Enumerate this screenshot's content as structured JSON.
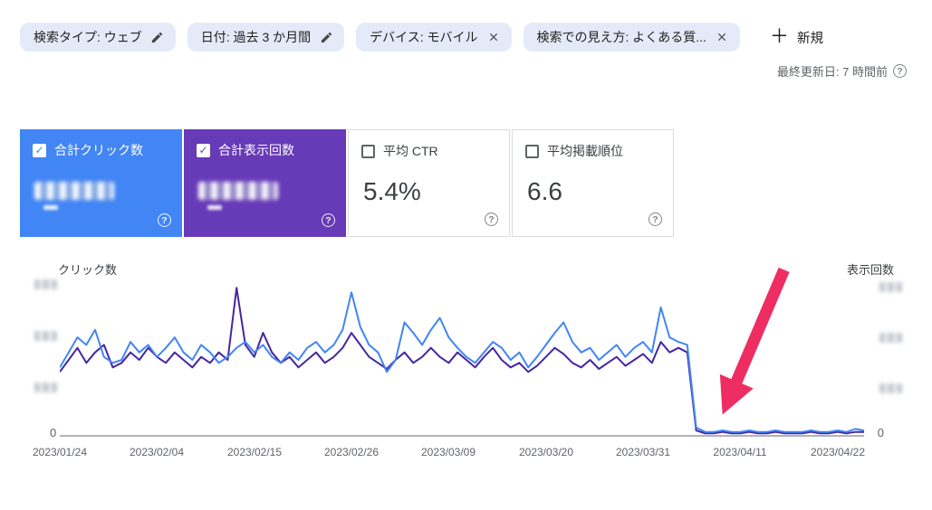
{
  "filter_bar": {
    "chips": [
      {
        "label": "検索タイプ: ウェブ",
        "icon": "edit-icon"
      },
      {
        "label": "日付: 過去 3 か月間",
        "icon": "edit-icon"
      },
      {
        "label": "デバイス: モバイル",
        "icon": "close-icon"
      },
      {
        "label": "検索での見え方: よくある質...",
        "icon": "close-icon"
      }
    ],
    "new_filter_label": "新規"
  },
  "status": {
    "last_updated": "最終更新日: 7 時間前"
  },
  "metric_cards": [
    {
      "label": "合計クリック数",
      "checked": true,
      "value_redacted": true,
      "bg_color": "#4285f4"
    },
    {
      "label": "合計表示回数",
      "checked": true,
      "value_redacted": true,
      "bg_color": "#673ab7"
    },
    {
      "label": "平均 CTR",
      "checked": false,
      "value": "5.4%",
      "bg_color": "#ffffff"
    },
    {
      "label": "平均掲載順位",
      "checked": false,
      "value": "6.6",
      "bg_color": "#ffffff"
    }
  ],
  "chart": {
    "left_axis_title": "クリック数",
    "right_axis_title": "表示回数",
    "left_zero_label": "0",
    "right_zero_label": "0",
    "y_tick_labels_redacted": true
  },
  "chart_data": {
    "type": "line",
    "x_start_date": "2023/01/24",
    "x_tick_labels": [
      "2023/01/24",
      "2023/02/04",
      "2023/02/15",
      "2023/02/26",
      "2023/03/09",
      "2023/03/20",
      "2023/03/31",
      "2023/04/11",
      "2023/04/22"
    ],
    "x_tick_indices": [
      0,
      11,
      22,
      33,
      44,
      55,
      66,
      77,
      88
    ],
    "y_scale": "relative 0-100 (numeric axis labels blurred in source image)",
    "grid": false,
    "legend_position": "none",
    "series": [
      {
        "name": "合計クリック数",
        "color": "#4285f4",
        "axis": "left",
        "values": [
          45,
          55,
          65,
          60,
          70,
          52,
          48,
          50,
          62,
          55,
          60,
          52,
          58,
          65,
          55,
          50,
          60,
          55,
          48,
          52,
          58,
          62,
          55,
          60,
          52,
          48,
          55,
          50,
          58,
          62,
          55,
          60,
          70,
          95,
          72,
          60,
          55,
          42,
          50,
          75,
          68,
          60,
          70,
          78,
          65,
          58,
          52,
          48,
          55,
          62,
          58,
          50,
          55,
          45,
          52,
          60,
          68,
          75,
          62,
          55,
          58,
          50,
          55,
          60,
          52,
          58,
          62,
          55,
          85,
          65,
          62,
          60,
          5,
          2,
          2,
          3,
          2,
          2,
          3,
          2,
          2,
          3,
          2,
          2,
          2,
          3,
          2,
          2,
          3,
          2,
          4,
          3
        ]
      },
      {
        "name": "合計表示回数",
        "color": "#4527a0",
        "axis": "right",
        "values": [
          42,
          50,
          58,
          48,
          55,
          60,
          45,
          48,
          55,
          50,
          58,
          52,
          48,
          55,
          50,
          45,
          52,
          48,
          55,
          50,
          98,
          60,
          52,
          68,
          55,
          48,
          52,
          45,
          50,
          55,
          48,
          52,
          58,
          68,
          60,
          52,
          48,
          44,
          50,
          55,
          48,
          52,
          58,
          52,
          48,
          55,
          50,
          45,
          52,
          58,
          50,
          45,
          48,
          42,
          46,
          52,
          58,
          54,
          48,
          45,
          50,
          44,
          48,
          52,
          46,
          50,
          54,
          48,
          62,
          55,
          58,
          55,
          3,
          1,
          1,
          2,
          1,
          1,
          2,
          1,
          1,
          2,
          1,
          1,
          1,
          2,
          1,
          1,
          2,
          1,
          2,
          2
        ]
      }
    ],
    "annotation": {
      "shape": "arrow",
      "color": "#ee2d63",
      "points_at": "2023/04/05 付近の急落"
    }
  }
}
